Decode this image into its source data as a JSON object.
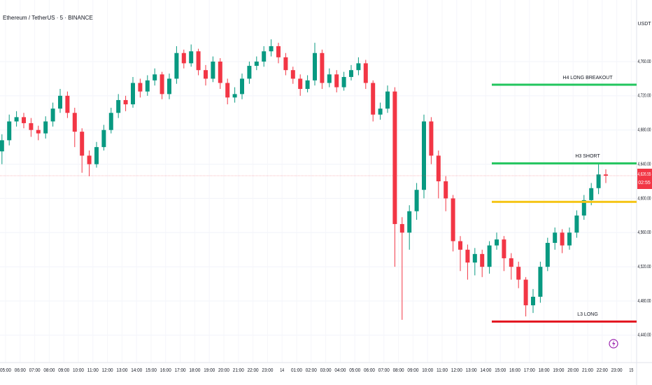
{
  "chart_data": {
    "type": "candlestick",
    "title": "Ethereum / TetherUS · 5 · BINANCE",
    "currency": "USDT",
    "x_labels": [
      "05:00",
      "06:00",
      "07:00",
      "08:00",
      "09:00",
      "10:00",
      "11:00",
      "12:00",
      "13:00",
      "14:00",
      "15:00",
      "16:00",
      "17:00",
      "18:00",
      "19:00",
      "20:00",
      "21:00",
      "22:00",
      "23:00",
      "14",
      "01:00",
      "02:00",
      "03:00",
      "04:00",
      "05:00",
      "06:00",
      "07:00",
      "08:00",
      "09:00",
      "10:00",
      "11:00",
      "12:00",
      "13:00",
      "14:00",
      "15:00",
      "16:00",
      "17:00",
      "18:00",
      "19:00",
      "20:00",
      "21:00",
      "22:00",
      "23:00",
      "15"
    ],
    "open": [
      4655,
      4668,
      4690,
      4695,
      4688,
      4680,
      4676,
      4690,
      4705,
      4720,
      4700,
      4678,
      4650,
      4640,
      4660,
      4680,
      4700,
      4715,
      4710,
      4735,
      4725,
      4738,
      4745,
      4722,
      4740,
      4770,
      4758,
      4772,
      4750,
      4740,
      4760,
      4735,
      4718,
      4722,
      4740,
      4755,
      4760,
      4772,
      4778,
      4765,
      4750,
      4740,
      4728,
      4738,
      4770,
      4735,
      4745,
      4730,
      4742,
      4750,
      4758,
      4735,
      4698,
      4705,
      4725,
      4570,
      4560,
      4585,
      4610,
      4690,
      4650,
      4620,
      4600,
      4550,
      4540,
      4525,
      4535,
      4520,
      4545,
      4552,
      4530,
      4520,
      4505,
      4475,
      4485,
      4520,
      4548,
      4560,
      4545,
      4560,
      4580,
      4598,
      4612,
      4628
    ],
    "high": [
      4675,
      4698,
      4702,
      4700,
      4694,
      4685,
      4696,
      4712,
      4728,
      4725,
      4706,
      4682,
      4656,
      4666,
      4686,
      4706,
      4722,
      4720,
      4742,
      4740,
      4744,
      4752,
      4748,
      4746,
      4778,
      4774,
      4780,
      4775,
      4756,
      4766,
      4764,
      4740,
      4730,
      4746,
      4760,
      4766,
      4778,
      4786,
      4782,
      4770,
      4754,
      4745,
      4744,
      4782,
      4774,
      4752,
      4750,
      4748,
      4756,
      4765,
      4762,
      4738,
      4712,
      4732,
      4730,
      4578,
      4592,
      4618,
      4698,
      4695,
      4656,
      4626,
      4604,
      4556,
      4546,
      4542,
      4540,
      4550,
      4560,
      4556,
      4536,
      4526,
      4508,
      4494,
      4526,
      4554,
      4566,
      4564,
      4566,
      4586,
      4604,
      4618,
      4642,
      4634
    ],
    "low": [
      4640,
      4662,
      4684,
      4682,
      4672,
      4668,
      4670,
      4684,
      4700,
      4694,
      4660,
      4630,
      4626,
      4636,
      4656,
      4676,
      4694,
      4702,
      4706,
      4718,
      4720,
      4732,
      4716,
      4716,
      4734,
      4752,
      4754,
      4744,
      4732,
      4736,
      4728,
      4710,
      4712,
      4716,
      4734,
      4750,
      4754,
      4766,
      4758,
      4744,
      4734,
      4720,
      4724,
      4732,
      4728,
      4730,
      4724,
      4726,
      4738,
      4744,
      4728,
      4690,
      4692,
      4700,
      4520,
      4458,
      4540,
      4575,
      4600,
      4640,
      4600,
      4585,
      4538,
      4515,
      4505,
      4510,
      4508,
      4512,
      4540,
      4515,
      4505,
      4495,
      4462,
      4466,
      4478,
      4515,
      4540,
      4536,
      4540,
      4554,
      4575,
      4592,
      4605,
      4618
    ],
    "close": [
      4668,
      4690,
      4695,
      4688,
      4680,
      4676,
      4690,
      4705,
      4720,
      4700,
      4678,
      4650,
      4640,
      4660,
      4680,
      4700,
      4715,
      4710,
      4735,
      4725,
      4738,
      4745,
      4722,
      4740,
      4770,
      4758,
      4772,
      4750,
      4740,
      4760,
      4735,
      4718,
      4722,
      4740,
      4755,
      4760,
      4772,
      4778,
      4765,
      4750,
      4740,
      4728,
      4738,
      4770,
      4735,
      4745,
      4730,
      4742,
      4750,
      4758,
      4735,
      4698,
      4705,
      4725,
      4570,
      4560,
      4585,
      4610,
      4690,
      4650,
      4620,
      4600,
      4550,
      4540,
      4525,
      4535,
      4520,
      4545,
      4552,
      4530,
      4520,
      4505,
      4475,
      4485,
      4520,
      4548,
      4560,
      4545,
      4560,
      4580,
      4598,
      4612,
      4628,
      4626.55
    ],
    "up_color": "#089981",
    "down_color": "#f23645",
    "ylim": [
      4408,
      4832
    ],
    "yticks": [
      {
        "value": 4440,
        "label": "4,440.00"
      },
      {
        "value": 4480,
        "label": "4,480.00"
      },
      {
        "value": 4520,
        "label": "4,520.00"
      },
      {
        "value": 4560,
        "label": "4,560.00"
      },
      {
        "value": 4600,
        "label": "4,600.00"
      },
      {
        "value": 4640,
        "label": "4,640.00"
      },
      {
        "value": 4680,
        "label": "4,680.00"
      },
      {
        "value": 4720,
        "label": "4,720.00"
      },
      {
        "value": 4760,
        "label": "4,760.00"
      }
    ],
    "grid": true,
    "last_price": {
      "value": 4626.55,
      "label": "4,626.55",
      "countdown": "02:55",
      "color": "#f23645"
    },
    "levels": [
      {
        "label": "H4 LONG BREAKOUT",
        "value": 4733,
        "color": "#22c55e"
      },
      {
        "label": "H3 SHORT",
        "value": 4641,
        "color": "#22c55e"
      },
      {
        "value": 4596,
        "color": "#f5c518"
      },
      {
        "label": "L3 LONG",
        "value": 4456,
        "color": "#e3141e"
      }
    ]
  }
}
